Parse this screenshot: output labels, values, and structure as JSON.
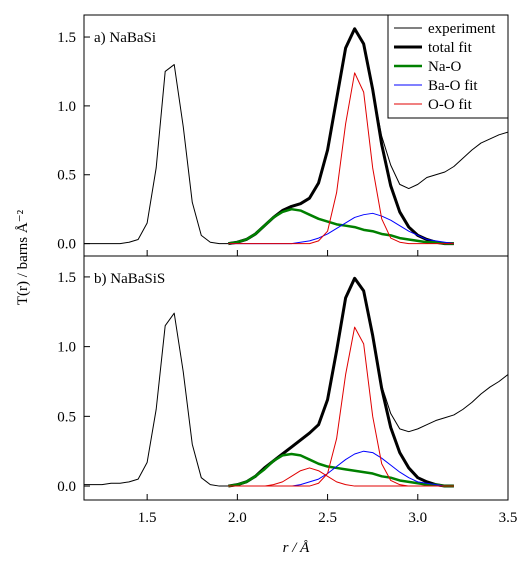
{
  "chart_data": [
    {
      "type": "line",
      "label": "a) NaBaSi",
      "ylabel": "T(r) / barns Å⁻²",
      "xlim": [
        1.15,
        3.5
      ],
      "xticks": [
        1.5,
        2,
        2.5,
        3,
        3.5
      ],
      "ylim": [
        -0.09,
        1.66
      ],
      "yticks": [
        {
          "value": 0,
          "label": "0.0"
        },
        0.5,
        {
          "value": 1,
          "label": "1.0"
        },
        1.5
      ],
      "legend": "upper right",
      "series": [
        {
          "name": "experiment",
          "color": "#000000",
          "linewidth": 1,
          "x": [
            1.15,
            1.2,
            1.25,
            1.3,
            1.35,
            1.4,
            1.45,
            1.5,
            1.55,
            1.6,
            1.65,
            1.7,
            1.75,
            1.8,
            1.85,
            1.9,
            1.95,
            2.0,
            2.05,
            2.1,
            2.15,
            2.2,
            2.25,
            2.3,
            2.35,
            2.4,
            2.45,
            2.5,
            2.55,
            2.6,
            2.65,
            2.7,
            2.75,
            2.8,
            2.85,
            2.9,
            2.95,
            3.0,
            3.05,
            3.1,
            3.15,
            3.2,
            3.25,
            3.3,
            3.35,
            3.4,
            3.45,
            3.5
          ],
          "values": [
            0,
            0,
            0,
            0,
            0,
            0.01,
            0.03,
            0.15,
            0.55,
            1.25,
            1.3,
            0.85,
            0.3,
            0.06,
            0.01,
            0,
            0,
            0.01,
            0.03,
            0.07,
            0.13,
            0.19,
            0.24,
            0.27,
            0.29,
            0.33,
            0.44,
            0.68,
            1.05,
            1.42,
            1.56,
            1.45,
            1.12,
            0.78,
            0.57,
            0.43,
            0.4,
            0.43,
            0.48,
            0.5,
            0.52,
            0.56,
            0.62,
            0.68,
            0.73,
            0.76,
            0.79,
            0.81
          ]
        },
        {
          "name": "total fit",
          "color": "#000000",
          "linewidth": 3,
          "x": [
            1.95,
            2.0,
            2.05,
            2.1,
            2.15,
            2.2,
            2.25,
            2.3,
            2.35,
            2.4,
            2.45,
            2.5,
            2.55,
            2.6,
            2.65,
            2.7,
            2.75,
            2.8,
            2.85,
            2.9,
            2.95,
            3.0,
            3.05,
            3.1,
            3.15,
            3.2
          ],
          "values": [
            0,
            0.01,
            0.03,
            0.07,
            0.13,
            0.19,
            0.24,
            0.27,
            0.29,
            0.33,
            0.44,
            0.68,
            1.05,
            1.42,
            1.56,
            1.45,
            1.12,
            0.72,
            0.42,
            0.23,
            0.12,
            0.06,
            0.03,
            0.01,
            0,
            0
          ]
        },
        {
          "name": "Na-O",
          "color": "#008000",
          "linewidth": 2.5,
          "x": [
            1.95,
            2.0,
            2.05,
            2.1,
            2.15,
            2.2,
            2.25,
            2.3,
            2.35,
            2.4,
            2.45,
            2.5,
            2.55,
            2.6,
            2.65,
            2.7,
            2.75,
            2.8,
            2.85,
            2.9,
            2.95,
            3.0,
            3.05,
            3.1,
            3.15,
            3.2
          ],
          "values": [
            0,
            0.01,
            0.03,
            0.07,
            0.13,
            0.19,
            0.23,
            0.25,
            0.24,
            0.21,
            0.18,
            0.16,
            0.14,
            0.13,
            0.12,
            0.1,
            0.09,
            0.07,
            0.06,
            0.04,
            0.03,
            0.02,
            0.01,
            0.01,
            0,
            0
          ]
        },
        {
          "name": "Ba-O fit",
          "color": "#0000ff",
          "linewidth": 1,
          "x": [
            1.95,
            2.0,
            2.05,
            2.1,
            2.15,
            2.2,
            2.25,
            2.3,
            2.35,
            2.4,
            2.45,
            2.5,
            2.55,
            2.6,
            2.65,
            2.7,
            2.75,
            2.8,
            2.85,
            2.9,
            2.95,
            3.0,
            3.05,
            3.1,
            3.15,
            3.2
          ],
          "values": [
            0,
            0,
            0,
            0,
            0,
            0,
            0,
            0,
            0.01,
            0.02,
            0.04,
            0.07,
            0.11,
            0.15,
            0.19,
            0.21,
            0.22,
            0.2,
            0.17,
            0.13,
            0.09,
            0.06,
            0.03,
            0.02,
            0.01,
            0
          ]
        },
        {
          "name": "O-O fit",
          "color": "#e00000",
          "linewidth": 1,
          "x": [
            1.95,
            2.0,
            2.05,
            2.1,
            2.15,
            2.2,
            2.25,
            2.3,
            2.35,
            2.4,
            2.45,
            2.5,
            2.55,
            2.6,
            2.65,
            2.7,
            2.75,
            2.8,
            2.85,
            2.9,
            2.95,
            3.0,
            3.05,
            3.1,
            3.15,
            3.2
          ],
          "values": [
            0,
            0,
            0,
            0,
            0,
            0,
            0,
            0,
            0,
            0,
            0.02,
            0.09,
            0.37,
            0.87,
            1.24,
            1.1,
            0.55,
            0.18,
            0.04,
            0.01,
            0,
            0,
            0,
            0,
            0,
            0
          ]
        }
      ]
    },
    {
      "type": "line",
      "label": "b) NaBaSiS",
      "xlabel": "r / Å",
      "xlim": [
        1.15,
        3.5
      ],
      "xticks": [
        1.5,
        {
          "value": 2,
          "label": "2.0"
        },
        2.5,
        {
          "value": 3,
          "label": "3.0"
        },
        3.5
      ],
      "ylim": [
        -0.1,
        1.65
      ],
      "yticks": [
        {
          "value": 0,
          "label": "0.0"
        },
        0.5,
        {
          "value": 1,
          "label": "1.0"
        },
        1.5
      ],
      "series": [
        {
          "color": "#000000",
          "linewidth": 1,
          "x": [
            1.15,
            1.2,
            1.25,
            1.3,
            1.35,
            1.4,
            1.45,
            1.5,
            1.55,
            1.6,
            1.65,
            1.7,
            1.75,
            1.8,
            1.85,
            1.9,
            1.95,
            2.0,
            2.05,
            2.1,
            2.15,
            2.2,
            2.25,
            2.3,
            2.35,
            2.4,
            2.45,
            2.5,
            2.55,
            2.6,
            2.65,
            2.7,
            2.75,
            2.8,
            2.85,
            2.9,
            2.95,
            3.0,
            3.05,
            3.1,
            3.15,
            3.2,
            3.25,
            3.3,
            3.35,
            3.4,
            3.45,
            3.5
          ],
          "values": [
            0.01,
            0.01,
            0.01,
            0.02,
            0.02,
            0.03,
            0.05,
            0.17,
            0.55,
            1.15,
            1.24,
            0.82,
            0.3,
            0.06,
            0.01,
            0,
            0,
            0.01,
            0.03,
            0.07,
            0.13,
            0.18,
            0.23,
            0.28,
            0.33,
            0.38,
            0.44,
            0.62,
            0.97,
            1.35,
            1.49,
            1.4,
            1.08,
            0.72,
            0.52,
            0.41,
            0.39,
            0.41,
            0.44,
            0.47,
            0.49,
            0.51,
            0.55,
            0.6,
            0.66,
            0.71,
            0.75,
            0.8
          ]
        },
        {
          "color": "#000000",
          "linewidth": 3,
          "x": [
            1.95,
            2.0,
            2.05,
            2.1,
            2.15,
            2.2,
            2.25,
            2.3,
            2.35,
            2.4,
            2.45,
            2.5,
            2.55,
            2.6,
            2.65,
            2.7,
            2.75,
            2.8,
            2.85,
            2.9,
            2.95,
            3.0,
            3.05,
            3.1,
            3.15,
            3.2
          ],
          "values": [
            0,
            0.01,
            0.03,
            0.07,
            0.13,
            0.18,
            0.23,
            0.28,
            0.33,
            0.38,
            0.44,
            0.62,
            0.97,
            1.35,
            1.49,
            1.4,
            1.08,
            0.7,
            0.42,
            0.24,
            0.13,
            0.06,
            0.03,
            0.01,
            0,
            0
          ]
        },
        {
          "color": "#008000",
          "linewidth": 2.5,
          "x": [
            1.95,
            2.0,
            2.05,
            2.1,
            2.15,
            2.2,
            2.25,
            2.3,
            2.35,
            2.4,
            2.45,
            2.5,
            2.55,
            2.6,
            2.65,
            2.7,
            2.75,
            2.8,
            2.85,
            2.9,
            2.95,
            3.0,
            3.05,
            3.1,
            3.15,
            3.2
          ],
          "values": [
            0,
            0.01,
            0.03,
            0.07,
            0.12,
            0.18,
            0.22,
            0.23,
            0.22,
            0.19,
            0.16,
            0.14,
            0.13,
            0.12,
            0.11,
            0.1,
            0.09,
            0.07,
            0.06,
            0.04,
            0.03,
            0.02,
            0.01,
            0.01,
            0,
            0
          ]
        },
        {
          "color": "#0000ff",
          "linewidth": 1,
          "x": [
            1.95,
            2.0,
            2.05,
            2.1,
            2.15,
            2.2,
            2.25,
            2.3,
            2.35,
            2.4,
            2.45,
            2.5,
            2.55,
            2.6,
            2.65,
            2.7,
            2.75,
            2.8,
            2.85,
            2.9,
            2.95,
            3.0,
            3.05,
            3.1,
            3.15,
            3.2
          ],
          "values": [
            0,
            0,
            0,
            0,
            0,
            0,
            0,
            0,
            0.01,
            0.03,
            0.05,
            0.09,
            0.14,
            0.19,
            0.23,
            0.25,
            0.24,
            0.2,
            0.15,
            0.1,
            0.06,
            0.03,
            0.02,
            0.01,
            0,
            0
          ]
        },
        {
          "color": "#e00000",
          "linewidth": 1,
          "x": [
            1.95,
            2.0,
            2.05,
            2.1,
            2.15,
            2.2,
            2.25,
            2.3,
            2.35,
            2.4,
            2.45,
            2.5,
            2.55,
            2.6,
            2.65,
            2.7,
            2.75,
            2.8,
            2.85,
            2.9,
            2.95,
            3.0,
            3.05,
            3.1,
            3.15,
            3.2
          ],
          "values": [
            0,
            0,
            0,
            0,
            0,
            0,
            0,
            0,
            0,
            0,
            0.02,
            0.09,
            0.34,
            0.8,
            1.14,
            1.02,
            0.5,
            0.16,
            0.04,
            0.01,
            0,
            0,
            0,
            0,
            0,
            0
          ]
        },
        {
          "color": "#e00000",
          "linewidth": 1,
          "x": [
            1.95,
            2.0,
            2.05,
            2.1,
            2.15,
            2.2,
            2.25,
            2.3,
            2.35,
            2.4,
            2.45,
            2.5,
            2.55,
            2.6,
            2.65,
            2.7,
            2.75,
            2.8,
            2.85,
            2.9,
            2.95,
            3.0,
            3.05,
            3.1,
            3.15,
            3.2
          ],
          "values": [
            0,
            0,
            0,
            0,
            0,
            0.01,
            0.03,
            0.07,
            0.11,
            0.13,
            0.11,
            0.07,
            0.03,
            0.01,
            0,
            0,
            0,
            0,
            0,
            0,
            0,
            0,
            0,
            0,
            0,
            0
          ]
        }
      ]
    }
  ]
}
